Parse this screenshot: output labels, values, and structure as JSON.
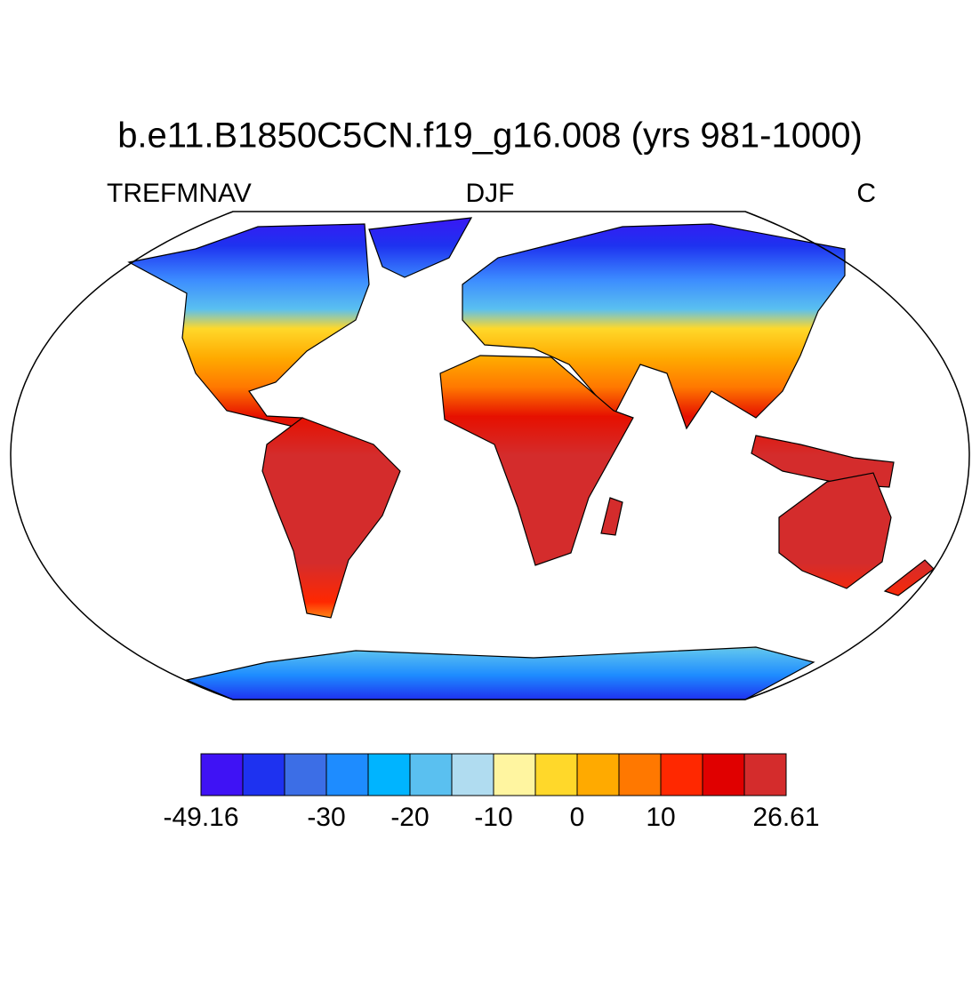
{
  "title": "b.e11.B1850C5CN.f19_g16.008 (yrs 981-1000)",
  "left_string": "TREFMNAV",
  "center_string": "DJF",
  "right_string": "C",
  "colorbar": {
    "colors": [
      "#3f12f5",
      "#1e32f0",
      "#3c6ee6",
      "#1e8cff",
      "#00b4ff",
      "#5ac0f0",
      "#b0dcf0",
      "#fff5a0",
      "#ffd82a",
      "#ffaa00",
      "#ff7800",
      "#ff2800",
      "#e00000",
      "#d42c2c"
    ],
    "boundaries": [
      -49.16,
      -40,
      -35,
      -30,
      -25,
      -20,
      -15,
      -10,
      -5,
      0,
      5,
      10,
      15,
      20,
      26.61
    ],
    "ticks": [
      -49.16,
      -30,
      -20,
      -10,
      0,
      10,
      26.61
    ]
  }
}
